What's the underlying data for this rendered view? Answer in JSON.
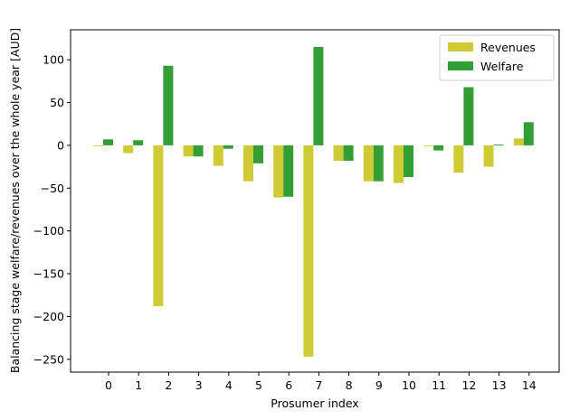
{
  "chart_data": {
    "type": "bar",
    "title": "",
    "xlabel": "Prosumer index",
    "ylabel": "Balancing stage welfare/revenues over the whole year [AUD]",
    "categories": [
      "0",
      "1",
      "2",
      "3",
      "4",
      "5",
      "6",
      "7",
      "8",
      "9",
      "10",
      "11",
      "12",
      "13",
      "14"
    ],
    "yticks": [
      100,
      50,
      0,
      -50,
      -100,
      -150,
      -200,
      -250
    ],
    "ylim": [
      -265,
      135
    ],
    "grid": false,
    "legend_position": "top-right",
    "series": [
      {
        "name": "Revenues",
        "color": "#cfcb35",
        "values": [
          -1,
          -9,
          -188,
          -13,
          -24,
          -42,
          -61,
          -247,
          -18,
          -42,
          -44,
          -1,
          -32,
          -25,
          8
        ]
      },
      {
        "name": "Welfare",
        "color": "#339e34",
        "values": [
          7,
          6,
          93,
          -13,
          -4,
          -21,
          -60,
          115,
          -18,
          -42,
          -37,
          -6,
          68,
          1,
          27
        ]
      }
    ]
  }
}
